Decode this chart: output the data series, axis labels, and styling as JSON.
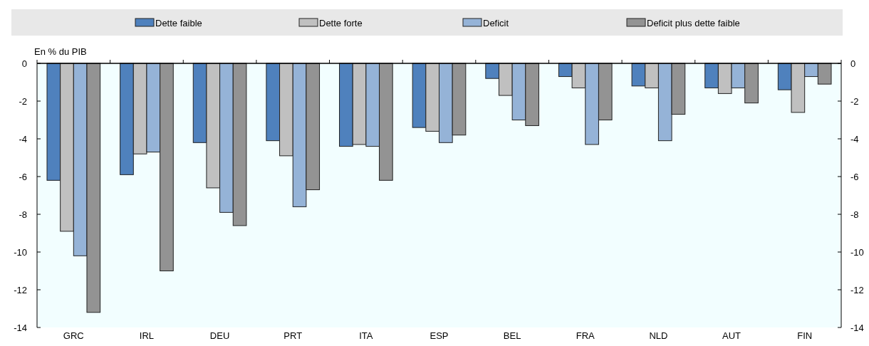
{
  "chart_data": {
    "type": "bar",
    "ylabel": "En % du PIB",
    "categories": [
      "GRC",
      "IRL",
      "DEU",
      "PRT",
      "ITA",
      "ESP",
      "BEL",
      "FRA",
      "NLD",
      "AUT",
      "FIN"
    ],
    "series": [
      {
        "name": "Dette faible",
        "color": "#4f81bd",
        "values": [
          -6.2,
          -5.9,
          -4.2,
          -4.1,
          -4.4,
          -3.4,
          -0.8,
          -0.7,
          -1.2,
          -1.3,
          -1.4
        ]
      },
      {
        "name": "Dette forte",
        "color": "#c0c0c0",
        "values": [
          -8.9,
          -4.8,
          -6.6,
          -4.9,
          -4.3,
          -3.6,
          -1.7,
          -1.3,
          -1.3,
          -1.6,
          -2.6
        ]
      },
      {
        "name": "Deficit",
        "color": "#95b3d7",
        "values": [
          -10.2,
          -4.7,
          -7.9,
          -7.6,
          -4.4,
          -4.2,
          -3.0,
          -4.3,
          -4.1,
          -1.3,
          -0.7
        ]
      },
      {
        "name": "Deficit plus dette faible",
        "color": "#939393",
        "values": [
          -13.2,
          -11.0,
          -8.6,
          -6.7,
          -6.2,
          -3.8,
          -3.3,
          -3.0,
          -2.7,
          -2.1,
          -1.1
        ]
      }
    ],
    "ylim": [
      -14,
      0
    ],
    "yticks": [
      0,
      -2,
      -4,
      -6,
      -8,
      -10,
      -12,
      -14
    ],
    "y2lim": [
      -14,
      0
    ],
    "y2ticks": [
      0,
      -2,
      -4,
      -6,
      -8,
      -10,
      -12,
      -14
    ],
    "legend": "top"
  }
}
